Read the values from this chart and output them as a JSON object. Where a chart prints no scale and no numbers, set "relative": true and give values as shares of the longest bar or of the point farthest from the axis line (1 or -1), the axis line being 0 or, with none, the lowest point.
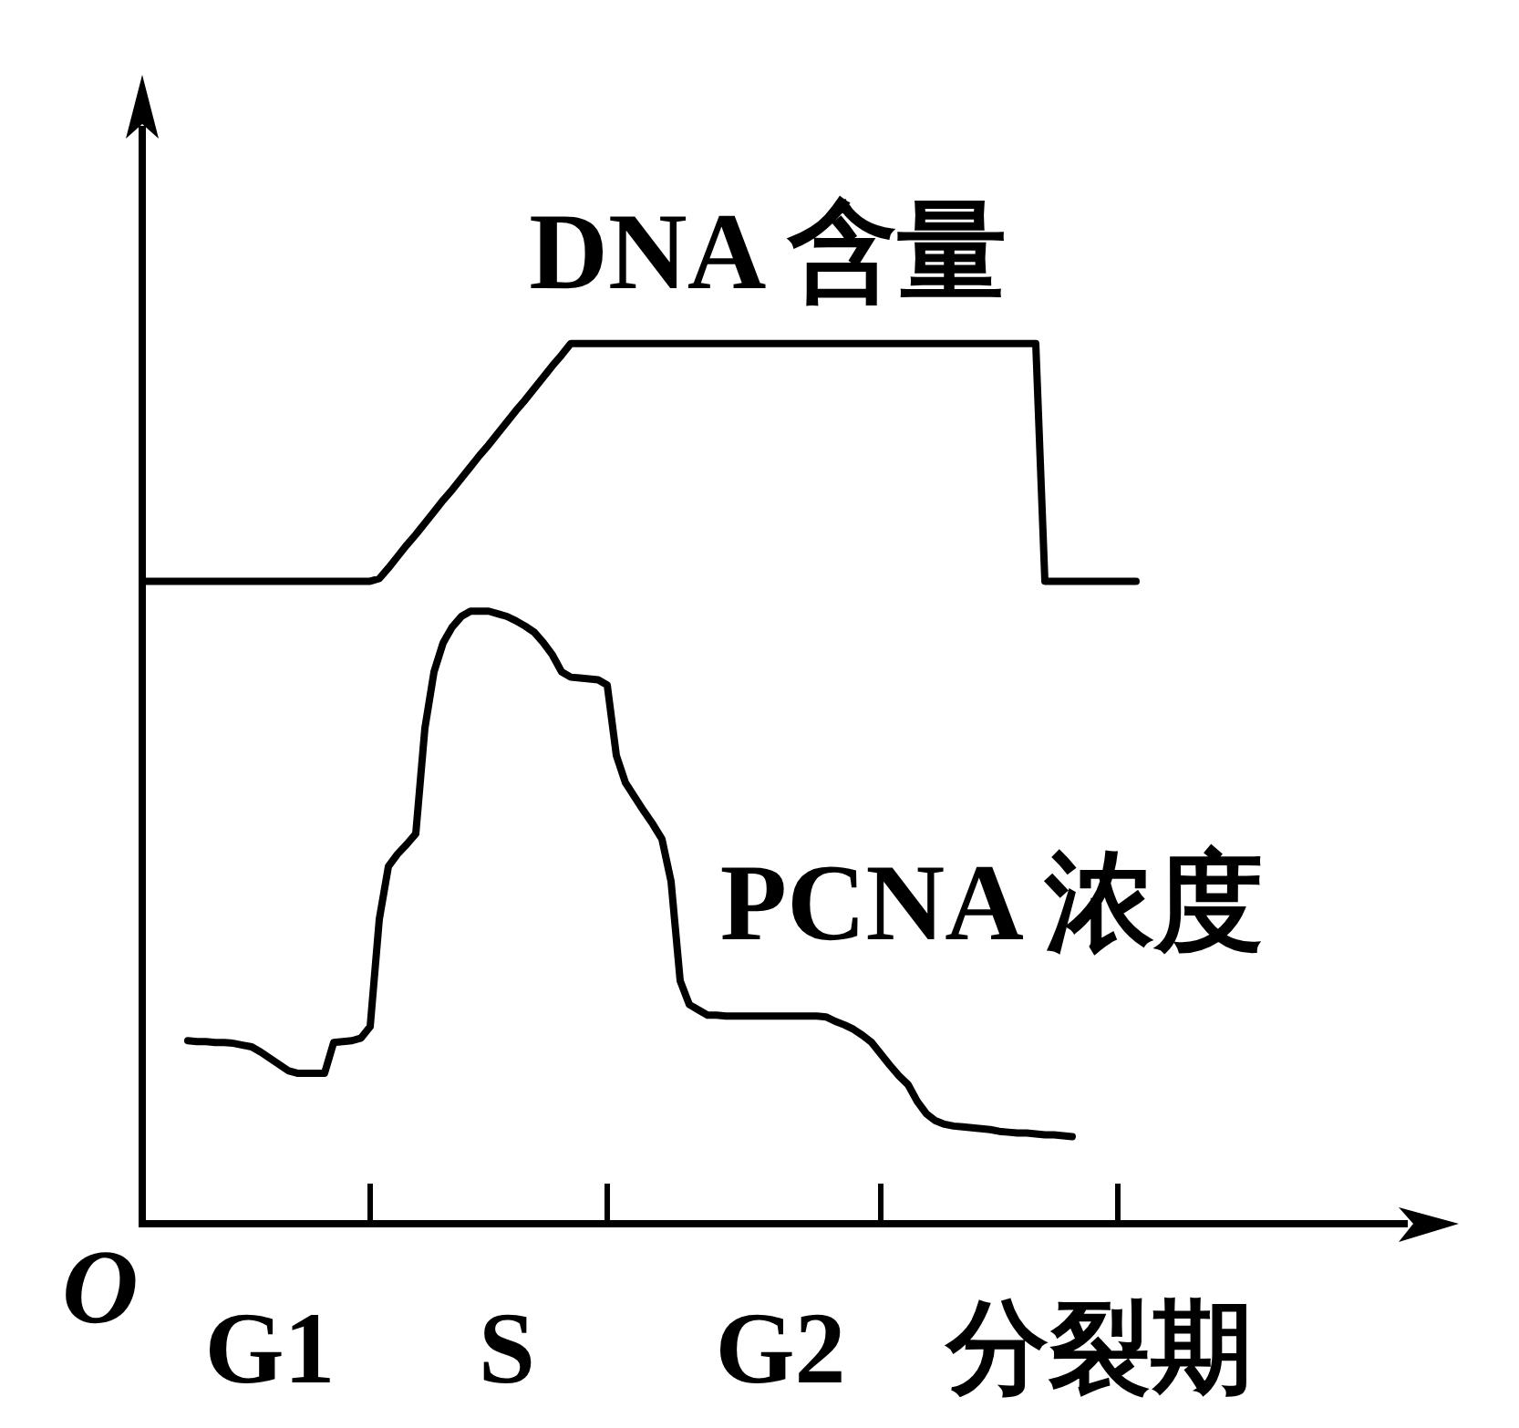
{
  "chart_data": {
    "type": "line",
    "relative": true,
    "categories": [
      null,
      null,
      null,
      null,
      null,
      null,
      null,
      null,
      null,
      null,
      null,
      null,
      null,
      null,
      "G1",
      null,
      null,
      null,
      null,
      null,
      null,
      null,
      null,
      null,
      null,
      null,
      null,
      null,
      null,
      null,
      null,
      null,
      null,
      null,
      null,
      null,
      null,
      null,
      null,
      null,
      "S",
      null,
      null,
      null,
      null,
      null,
      null,
      null,
      null,
      null,
      null,
      null,
      null,
      null,
      null,
      null,
      null,
      null,
      null,
      null,
      null,
      null,
      null,
      null,
      null,
      null,
      null,
      null,
      null,
      null,
      "G2",
      null,
      null,
      null,
      null,
      null,
      null,
      null,
      null,
      null,
      null,
      null,
      null,
      null,
      null,
      null,
      null,
      null,
      null,
      null,
      null,
      null,
      null,
      null,
      null,
      null,
      null,
      null,
      null,
      null,
      null,
      null,
      null,
      null,
      null,
      "分裂期",
      null,
      null,
      null,
      null
    ],
    "series": [
      {
        "name": "DNA 含量",
        "color": "#000000",
        "values": [
          0.73,
          0.73,
          0.73,
          0.73,
          0.73,
          0.73,
          0.73,
          0.73,
          0.73,
          0.73,
          0.73,
          0.73,
          0.73,
          0.73,
          0.73,
          0.73,
          0.73,
          0.73,
          0.73,
          0.73,
          0.73,
          0.73,
          0.73,
          0.73,
          0.73,
          0.73,
          0.733,
          0.745,
          0.758,
          0.771,
          0.783,
          0.796,
          0.809,
          0.822,
          0.834,
          0.847,
          0.86,
          0.873,
          0.885,
          0.898,
          0.911,
          0.924,
          0.936,
          0.949,
          0.962,
          0.975,
          0.987,
          1,
          1,
          1,
          1,
          1,
          1,
          1,
          1,
          1,
          1,
          1,
          1,
          1,
          1,
          1,
          1,
          1,
          1,
          1,
          1,
          1,
          1,
          1,
          1,
          1,
          1,
          1,
          1,
          1,
          1,
          1,
          1,
          1,
          1,
          1,
          1,
          1,
          1,
          1,
          1,
          1,
          1,
          1,
          1,
          1,
          1,
          1,
          1,
          1,
          1,
          1,
          1,
          0.73,
          0.73,
          0.73,
          0.73,
          0.73,
          0.73,
          0.73,
          0.73,
          0.73,
          0.73,
          0.73
        ]
      },
      {
        "name": "PCNA 浓度",
        "color": "#000000",
        "values": [
          null,
          null,
          null,
          null,
          null,
          0.208,
          0.207,
          0.207,
          0.206,
          0.206,
          0.205,
          0.203,
          0.201,
          0.195,
          0.188,
          0.181,
          0.174,
          0.171,
          0.171,
          0.171,
          0.171,
          0.206,
          0.207,
          0.208,
          0.211,
          0.224,
          0.346,
          0.406,
          0.42,
          0.431,
          0.443,
          0.563,
          0.627,
          0.66,
          0.678,
          0.69,
          0.696,
          0.696,
          0.696,
          0.693,
          0.69,
          0.685,
          0.679,
          0.672,
          0.66,
          0.646,
          0.627,
          0.621,
          0.62,
          0.619,
          0.618,
          0.612,
          0.532,
          0.501,
          0.485,
          0.469,
          0.454,
          0.437,
          0.389,
          0.276,
          0.249,
          0.243,
          0.237,
          0.237,
          0.236,
          0.236,
          0.236,
          0.236,
          0.236,
          0.236,
          0.236,
          0.236,
          0.236,
          0.236,
          0.236,
          0.235,
          0.23,
          0.226,
          0.221,
          0.214,
          0.206,
          0.193,
          0.18,
          0.168,
          0.158,
          0.139,
          0.125,
          0.117,
          0.113,
          0.111,
          0.11,
          0.109,
          0.108,
          0.107,
          0.105,
          0.104,
          0.103,
          0.103,
          0.102,
          0.101,
          0.101,
          0.1,
          0.099,
          null,
          null,
          null,
          null,
          null,
          null,
          null
        ]
      }
    ],
    "annotations": [
      "O"
    ]
  }
}
